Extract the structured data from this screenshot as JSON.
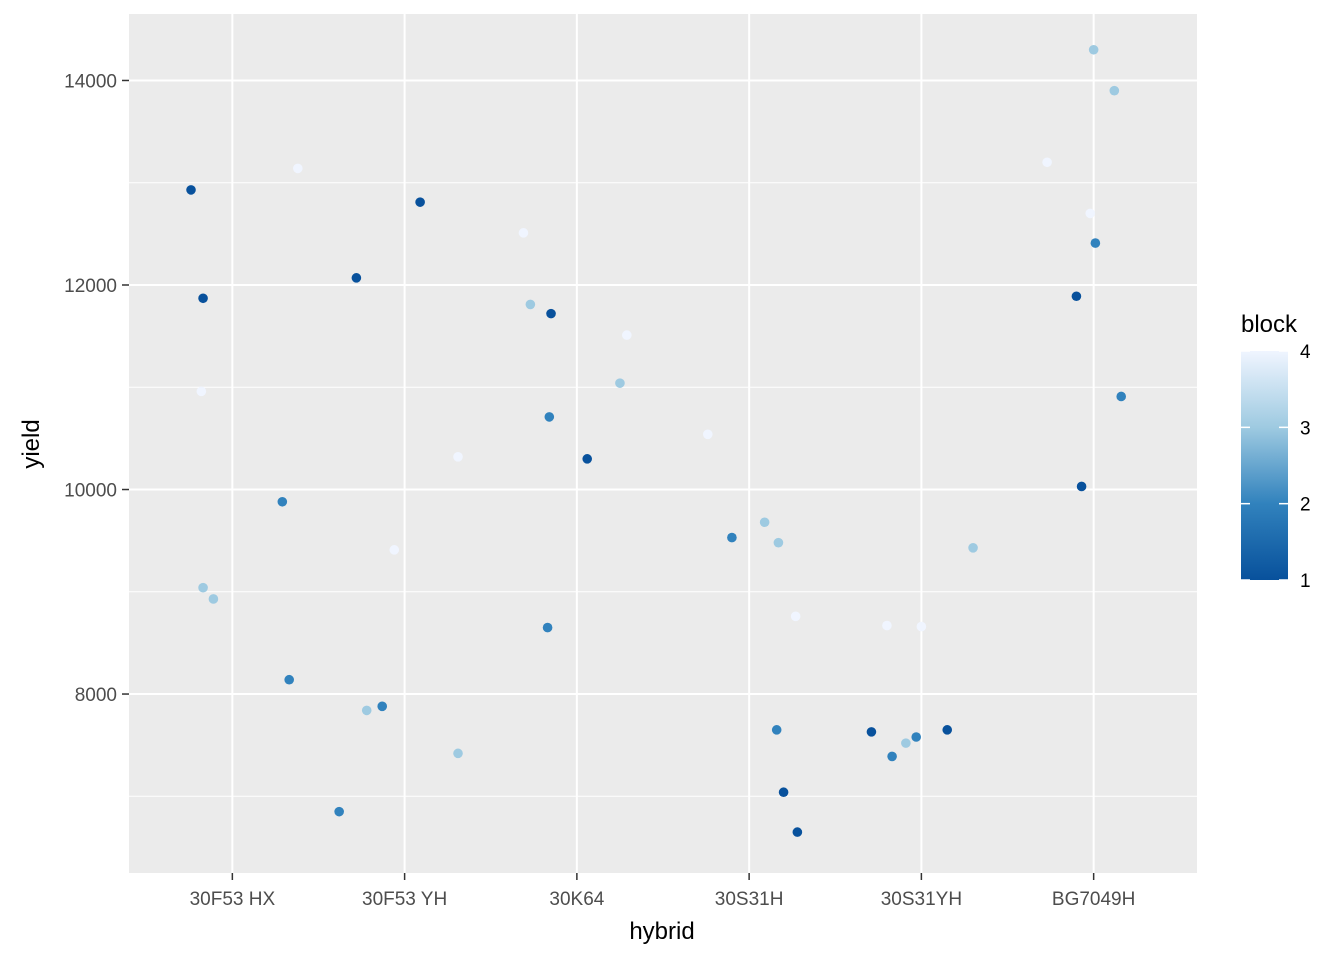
{
  "chart_data": {
    "type": "scatter",
    "title": "",
    "xlabel": "hybrid",
    "ylabel": "yield",
    "categories": [
      "30F53 HX",
      "30F53 YH",
      "30K64",
      "30S31H",
      "30S31YH",
      "BG7049H"
    ],
    "y_ticks": [
      8000,
      10000,
      12000,
      14000
    ],
    "ylim": [
      6250,
      14650
    ],
    "grid": true,
    "legend": {
      "title": "block",
      "position": "right",
      "range": [
        1,
        4
      ],
      "ticks": [
        1,
        2,
        3,
        4
      ],
      "color_low": "#08519c",
      "color_mid_low": "#3182bd",
      "color_mid_high": "#9ecae1",
      "color_high": "#f0f5ff"
    },
    "points": [
      {
        "hybrid": "30F53 HX",
        "x": 0.76,
        "yield": 12930,
        "block": 1
      },
      {
        "hybrid": "30F53 HX",
        "x": 0.83,
        "yield": 11870,
        "block": 1
      },
      {
        "hybrid": "30F53 HX",
        "x": 0.82,
        "yield": 10960,
        "block": 4
      },
      {
        "hybrid": "30F53 HX",
        "x": 0.83,
        "yield": 9040,
        "block": 3
      },
      {
        "hybrid": "30F53 HX",
        "x": 0.89,
        "yield": 8930,
        "block": 3
      },
      {
        "hybrid": "30F53 HX",
        "x": 1.29,
        "yield": 9880,
        "block": 2
      },
      {
        "hybrid": "30F53 HX",
        "x": 1.33,
        "yield": 8140,
        "block": 2
      },
      {
        "hybrid": "30F53 HX",
        "x": 1.38,
        "yield": 13140,
        "block": 4
      },
      {
        "hybrid": "30F53 YH",
        "x": 1.62,
        "yield": 6850,
        "block": 2
      },
      {
        "hybrid": "30F53 YH",
        "x": 1.72,
        "yield": 12070,
        "block": 1
      },
      {
        "hybrid": "30F53 YH",
        "x": 1.78,
        "yield": 7840,
        "block": 3
      },
      {
        "hybrid": "30F53 YH",
        "x": 1.87,
        "yield": 7880,
        "block": 2
      },
      {
        "hybrid": "30F53 YH",
        "x": 1.94,
        "yield": 9410,
        "block": 4
      },
      {
        "hybrid": "30F53 YH",
        "x": 2.09,
        "yield": 12810,
        "block": 1
      },
      {
        "hybrid": "30F53 YH",
        "x": 2.31,
        "yield": 10320,
        "block": 4
      },
      {
        "hybrid": "30F53 YH",
        "x": 2.31,
        "yield": 7420,
        "block": 3
      },
      {
        "hybrid": "30K64",
        "x": 2.69,
        "yield": 12510,
        "block": 4
      },
      {
        "hybrid": "30K64",
        "x": 2.73,
        "yield": 11810,
        "block": 3
      },
      {
        "hybrid": "30K64",
        "x": 2.85,
        "yield": 11720,
        "block": 1
      },
      {
        "hybrid": "30K64",
        "x": 2.84,
        "yield": 10710,
        "block": 2
      },
      {
        "hybrid": "30K64",
        "x": 2.83,
        "yield": 8650,
        "block": 2
      },
      {
        "hybrid": "30K64",
        "x": 3.06,
        "yield": 10300,
        "block": 1
      },
      {
        "hybrid": "30K64",
        "x": 3.25,
        "yield": 11040,
        "block": 3
      },
      {
        "hybrid": "30K64",
        "x": 3.29,
        "yield": 11510,
        "block": 4
      },
      {
        "hybrid": "30S31H",
        "x": 3.76,
        "yield": 10540,
        "block": 4
      },
      {
        "hybrid": "30S31H",
        "x": 3.9,
        "yield": 9530,
        "block": 2
      },
      {
        "hybrid": "30S31H",
        "x": 4.09,
        "yield": 9680,
        "block": 3
      },
      {
        "hybrid": "30S31H",
        "x": 4.17,
        "yield": 9480,
        "block": 3
      },
      {
        "hybrid": "30S31H",
        "x": 4.16,
        "yield": 7650,
        "block": 2
      },
      {
        "hybrid": "30S31H",
        "x": 4.2,
        "yield": 7040,
        "block": 1
      },
      {
        "hybrid": "30S31H",
        "x": 4.27,
        "yield": 8760,
        "block": 4
      },
      {
        "hybrid": "30S31H",
        "x": 4.28,
        "yield": 6650,
        "block": 1
      },
      {
        "hybrid": "30S31YH",
        "x": 4.71,
        "yield": 7630,
        "block": 1
      },
      {
        "hybrid": "30S31YH",
        "x": 4.8,
        "yield": 8670,
        "block": 4
      },
      {
        "hybrid": "30S31YH",
        "x": 4.83,
        "yield": 7390,
        "block": 2
      },
      {
        "hybrid": "30S31YH",
        "x": 4.91,
        "yield": 7520,
        "block": 3
      },
      {
        "hybrid": "30S31YH",
        "x": 4.97,
        "yield": 7580,
        "block": 2
      },
      {
        "hybrid": "30S31YH",
        "x": 5.0,
        "yield": 8660,
        "block": 4
      },
      {
        "hybrid": "30S31YH",
        "x": 5.15,
        "yield": 7650,
        "block": 1
      },
      {
        "hybrid": "30S31YH",
        "x": 5.3,
        "yield": 9430,
        "block": 3
      },
      {
        "hybrid": "BG7049H",
        "x": 5.73,
        "yield": 13200,
        "block": 4
      },
      {
        "hybrid": "BG7049H",
        "x": 5.9,
        "yield": 11890,
        "block": 1
      },
      {
        "hybrid": "BG7049H",
        "x": 5.93,
        "yield": 10030,
        "block": 1
      },
      {
        "hybrid": "BG7049H",
        "x": 5.98,
        "yield": 12700,
        "block": 4
      },
      {
        "hybrid": "BG7049H",
        "x": 6.0,
        "yield": 14300,
        "block": 3
      },
      {
        "hybrid": "BG7049H",
        "x": 6.01,
        "yield": 12410,
        "block": 2
      },
      {
        "hybrid": "BG7049H",
        "x": 6.12,
        "yield": 13900,
        "block": 3
      },
      {
        "hybrid": "BG7049H",
        "x": 6.16,
        "yield": 10910,
        "block": 2
      }
    ]
  }
}
